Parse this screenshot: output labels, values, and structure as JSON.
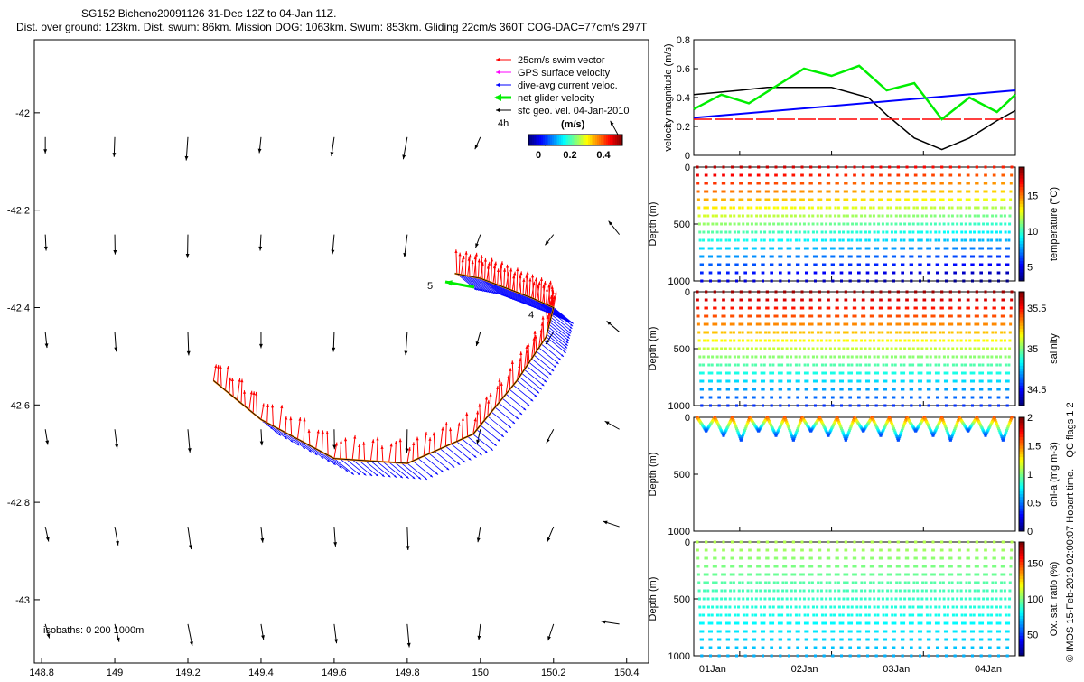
{
  "header": {
    "title_line1": "SG152 Bicheno20091126 31-Dec 12Z to 04-Jan 11Z.",
    "title_line2": "Dist. over ground: 123km. Dist. swum: 86km. Mission DOG: 1063km. Swum: 853km. Gliding 22cm/s 360T COG-DAC=77cm/s 297T"
  },
  "map": {
    "legend": {
      "swim": "25cm/s swim vector",
      "gps": "GPS surface velocity",
      "dac": "dive-avg current veloc.",
      "net": "net glider velocity",
      "sfc": "sfc geo. vel. 04-Jan-2010",
      "interval": "4h",
      "cbar_title": "(m/s)",
      "cbar_ticks": [
        "0",
        "0.2",
        "0.4"
      ]
    },
    "isobaths": "isobaths: 0   200  1000m",
    "track_labels": [
      "5",
      "4"
    ],
    "x_ticks": [
      "148.8",
      "149",
      "149.2",
      "149.4",
      "149.6",
      "149.8",
      "150",
      "150.2",
      "150.4"
    ],
    "y_ticks": [
      "-42",
      "-42.2",
      "-42.4",
      "-42.6",
      "-42.8",
      "-43"
    ],
    "colors": {
      "swim": "#ff0000",
      "gps": "#ff00ff",
      "dac": "#0000ff",
      "net": "#00ee00",
      "sfc": "#000000",
      "track": "#ff8800"
    }
  },
  "panels": {
    "velocity": {
      "ylabel": "velocity magnitude (m/s)",
      "y_ticks": [
        "0",
        "0.2",
        "0.4",
        "0.6",
        "0.8"
      ]
    },
    "temperature": {
      "ylabel": "Depth (m)",
      "clabel": "temperature (°C)",
      "y_ticks": [
        "0",
        "500",
        "1000"
      ],
      "c_ticks": [
        "5",
        "10",
        "15"
      ]
    },
    "salinity": {
      "ylabel": "Depth (m)",
      "clabel": "salinity",
      "y_ticks": [
        "0",
        "500",
        "1000"
      ],
      "c_ticks": [
        "34.5",
        "35",
        "35.5"
      ]
    },
    "chla": {
      "ylabel": "Depth (m)",
      "clabel": "chl-a (mg m-3)",
      "y_ticks": [
        "0",
        "500",
        "1000"
      ],
      "c_ticks": [
        "0",
        "0.5",
        "1",
        "1.5",
        "2"
      ]
    },
    "oxygen": {
      "ylabel": "Depth (m)",
      "clabel": "Ox. sat. ratio (%)",
      "y_ticks": [
        "0",
        "500",
        "1000"
      ],
      "c_ticks": [
        "50",
        "100",
        "150"
      ]
    },
    "x_ticks": [
      "01Jan",
      "02Jan",
      "03Jan",
      "04Jan"
    ],
    "qc_flags": "QC flags 1  2",
    "footer": "© IMOS 15-Feb-2019 02:00:07 Hobart time."
  },
  "chart_data": [
    {
      "type": "scatter",
      "title": "SG152 Bicheno20091126 31-Dec 12Z to 04-Jan 11Z.",
      "xlim": [
        148.78,
        150.46
      ],
      "ylim": [
        -43.13,
        -41.85
      ],
      "glider_track": {
        "x": [
          149.27,
          149.4,
          149.6,
          149.8,
          149.98,
          150.1,
          150.18,
          150.2,
          150.14,
          150.07,
          150.0,
          149.93
        ],
        "y": [
          -42.55,
          -42.63,
          -42.71,
          -42.72,
          -42.66,
          -42.55,
          -42.46,
          -42.4,
          -42.38,
          -42.36,
          -42.34,
          -42.33
        ]
      },
      "sfc_vector_rows_lat": [
        -42.05,
        -42.25,
        -42.45,
        -42.65,
        -42.85,
        -43.05
      ],
      "sfc_vector_cols_lon": [
        148.81,
        149.0,
        149.2,
        149.4,
        149.6,
        149.8,
        150.0,
        150.2,
        150.38
      ]
    },
    {
      "type": "line",
      "xlabel": "",
      "ylabel": "velocity magnitude (m/s)",
      "xlim": [
        31.5,
        35.0
      ],
      "ylim": [
        0,
        0.8
      ],
      "series": [
        {
          "x": [
            31.5,
            32.0,
            32.3,
            32.7,
            33.0,
            33.4,
            33.6,
            33.9,
            34.2,
            34.5,
            34.8,
            35.0
          ],
          "values": [
            0.42,
            0.45,
            0.47,
            0.47,
            0.47,
            0.4,
            0.28,
            0.12,
            0.04,
            0.12,
            0.24,
            0.31
          ]
        },
        {
          "x": [
            31.5,
            35.0
          ],
          "values": [
            0.26,
            0.45
          ]
        },
        {
          "x": [
            31.5,
            35.0
          ],
          "values": [
            0.25,
            0.25
          ]
        },
        {
          "x": [
            31.5,
            31.8,
            32.1,
            32.4,
            32.7,
            33.0,
            33.3,
            33.6,
            33.9,
            34.2,
            34.5,
            34.8,
            35.0
          ],
          "values": [
            0.32,
            0.42,
            0.36,
            0.48,
            0.6,
            0.55,
            0.62,
            0.45,
            0.5,
            0.25,
            0.4,
            0.3,
            0.42
          ]
        }
      ]
    },
    {
      "type": "scatter",
      "ylabel": "Depth (m)",
      "ylim": [
        1000,
        0
      ],
      "xlim": [
        31.5,
        35.0
      ],
      "profiles": 36,
      "max_depth": 1000,
      "clim": [
        3,
        19
      ]
    },
    {
      "type": "scatter",
      "ylabel": "Depth (m)",
      "ylim": [
        1000,
        0
      ],
      "xlim": [
        31.5,
        35.0
      ],
      "profiles": 36,
      "max_depth": 1000,
      "clim": [
        34.3,
        35.7
      ]
    },
    {
      "type": "scatter",
      "ylabel": "Depth (m)",
      "ylim": [
        1000,
        0
      ],
      "xlim": [
        31.5,
        35.0
      ],
      "profiles": 18,
      "max_depth": 200,
      "clim": [
        0,
        2
      ]
    },
    {
      "type": "scatter",
      "ylabel": "Depth (m)",
      "ylim": [
        1000,
        0
      ],
      "xlim": [
        31.5,
        35.0
      ],
      "profiles": 36,
      "max_depth": 1000,
      "clim": [
        20,
        180
      ]
    }
  ]
}
